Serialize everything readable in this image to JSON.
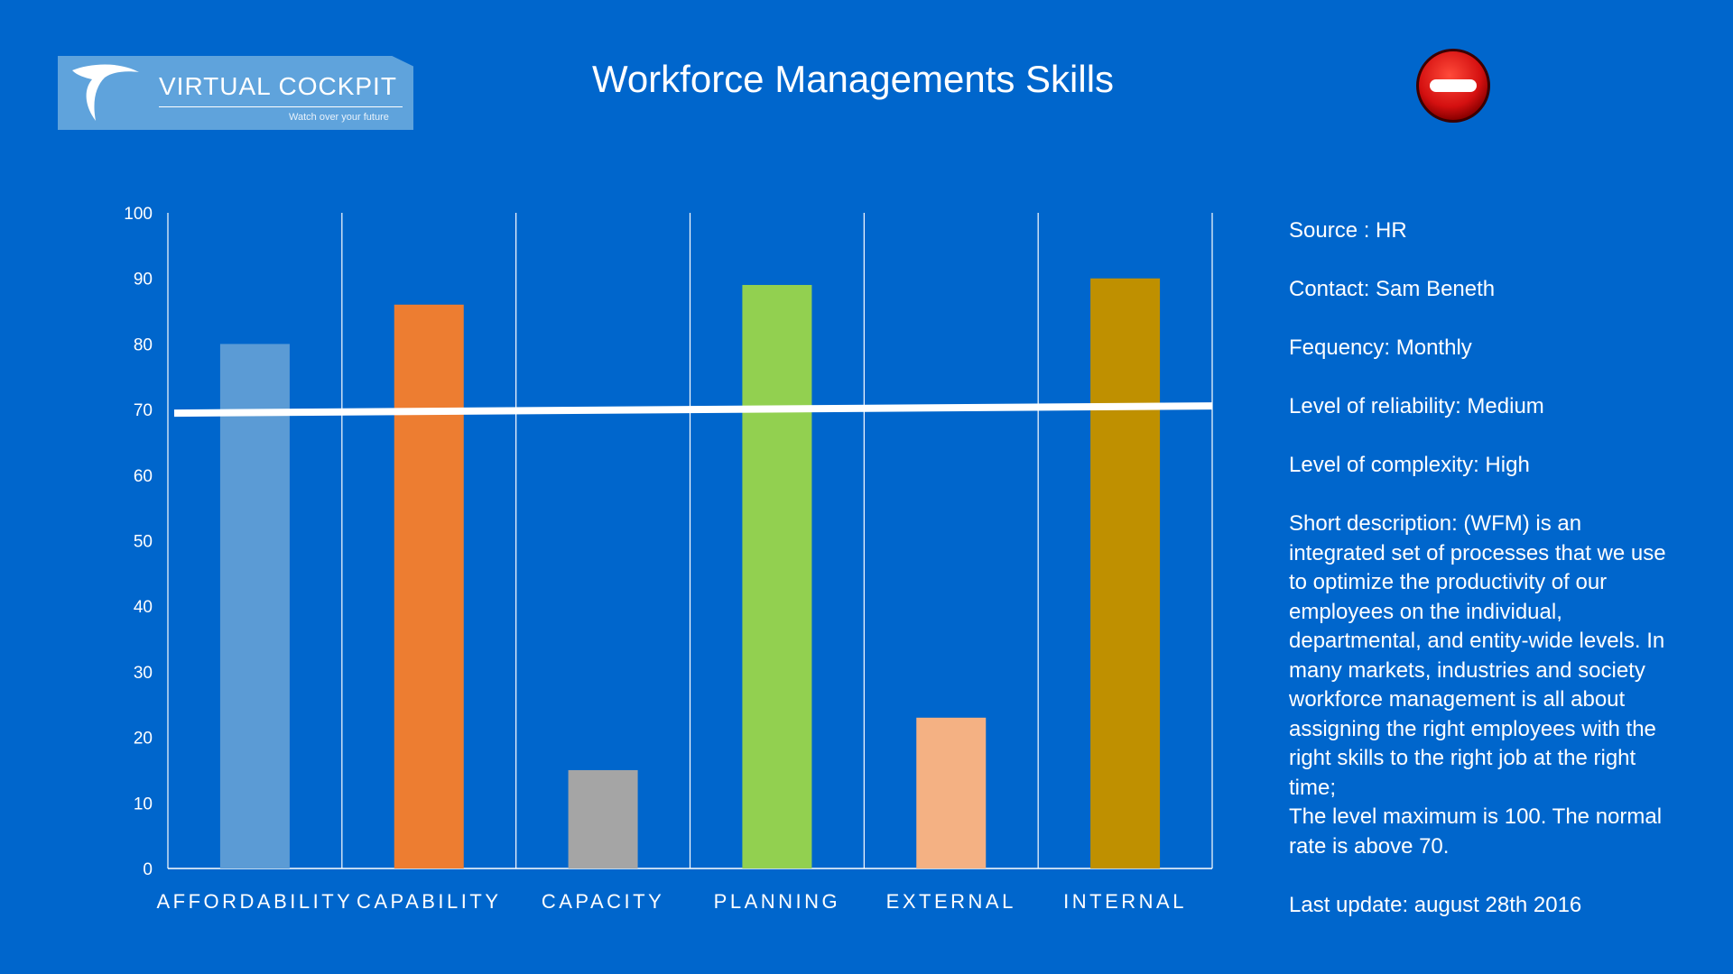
{
  "logo": {
    "name": "VIRTUAL COCKPIT",
    "tagline": "Watch over your future"
  },
  "header": {
    "title": "Workforce Managements Skills"
  },
  "status_icon": "stop-icon",
  "colors": {
    "background": "#0066cc",
    "threshold_line": "#ffffff",
    "status_icon": "#d41010"
  },
  "info": {
    "source": "Source : HR",
    "contact": "Contact: Sam Beneth",
    "frequency": "Fequency: Monthly",
    "reliability": "Level of reliability: Medium",
    "complexity": "Level of complexity:  High",
    "description": "Short description:  (WFM) is an integrated set of processes that we use to optimize the productivity of our employees on the individual, departmental, and entity-wide levels. In many markets, industries and society workforce management is all about assigning the right employees with the right skills to the right job at the right time;",
    "description_note": "The level maximum is 100. The normal rate is above 70.",
    "last_update": "Last update:  august 28th 2016"
  },
  "chart_data": {
    "type": "bar",
    "title": "",
    "xlabel": "",
    "ylabel": "",
    "ylim": [
      0,
      100
    ],
    "yticks": [
      0,
      10,
      20,
      30,
      40,
      50,
      60,
      70,
      80,
      90,
      100
    ],
    "categories": [
      "AFFORDABILITY",
      "CAPABILITY",
      "CAPACITY",
      "PLANNING",
      "EXTERNAL",
      "INTERNAL"
    ],
    "values": [
      80,
      86,
      15,
      89,
      23,
      90
    ],
    "bar_colors": [
      "#5b9bd5",
      "#ed7d31",
      "#a5a5a5",
      "#92d050",
      "#f4b183",
      "#bf9000"
    ],
    "threshold": {
      "value": 70,
      "color": "#ffffff"
    },
    "grid": {
      "vertical": true,
      "horizontal": false
    },
    "legend": "none"
  }
}
